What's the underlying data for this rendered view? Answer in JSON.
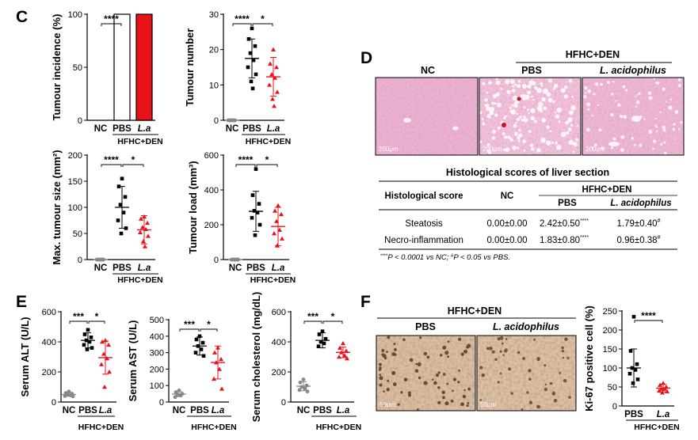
{
  "panels": {
    "C": "C",
    "D": "D",
    "E": "E",
    "F": "F"
  },
  "colors": {
    "nc": "#888888",
    "pbs": "#000000",
    "la": "#e8121a",
    "he_tissue": "#e6a6c8",
    "ihc_tissue": "#d9b999"
  },
  "group_label": "HFHC+DEN",
  "chart_data": [
    {
      "id": "tumour-incidence",
      "type": "bar",
      "ylabel": "Tumour incidence (%)",
      "ylim": [
        0,
        100
      ],
      "yticks": [
        0,
        50,
        100
      ],
      "categories": [
        "NC",
        "PBS",
        "L.a"
      ],
      "values": [
        0,
        100,
        100
      ],
      "sig": [
        {
          "from": 0,
          "to": 1,
          "label": "****"
        }
      ]
    },
    {
      "id": "tumour-number",
      "type": "scatter",
      "ylabel": "Tumour number",
      "ylim": [
        0,
        30
      ],
      "yticks": [
        0,
        10,
        20,
        30
      ],
      "categories": [
        "NC",
        "PBS",
        "L.a"
      ],
      "mean": [
        0,
        17.5,
        12.3
      ],
      "sd": [
        0,
        5.5,
        5.5
      ],
      "points": [
        [
          0,
          0,
          0,
          0,
          0,
          0,
          0,
          0
        ],
        [
          26,
          23,
          21,
          19,
          17,
          15,
          13,
          11,
          9
        ],
        [
          20,
          16,
          15,
          13,
          12,
          10,
          8,
          6,
          4
        ]
      ],
      "sig": [
        {
          "from": 0,
          "to": 1,
          "label": "****"
        },
        {
          "from": 1,
          "to": 2,
          "label": "*"
        }
      ]
    },
    {
      "id": "max-tumour-size",
      "type": "scatter",
      "ylabel": "Max. tumour size (mm²)",
      "ylim": [
        0,
        200
      ],
      "yticks": [
        0,
        50,
        100,
        150,
        200
      ],
      "categories": [
        "NC",
        "PBS",
        "L.a"
      ],
      "mean": [
        0,
        100,
        57
      ],
      "sd": [
        0,
        40,
        27
      ],
      "points": [
        [
          0,
          0,
          0,
          0,
          0,
          0,
          0,
          0
        ],
        [
          155,
          140,
          120,
          105,
          90,
          75,
          60,
          50
        ],
        [
          82,
          78,
          70,
          62,
          58,
          52,
          45,
          35,
          25
        ]
      ],
      "sig": [
        {
          "from": 0,
          "to": 1,
          "label": "****"
        },
        {
          "from": 1,
          "to": 2,
          "label": "*"
        }
      ]
    },
    {
      "id": "tumour-load",
      "type": "scatter",
      "ylabel": "Tumour load (mm³)",
      "ylim": [
        0,
        600
      ],
      "yticks": [
        0,
        200,
        400,
        600
      ],
      "categories": [
        "NC",
        "PBS",
        "L.a"
      ],
      "mean": [
        0,
        277,
        190
      ],
      "sd": [
        0,
        115,
        110
      ],
      "points": [
        [
          0,
          0,
          0,
          0,
          0,
          0,
          0,
          0
        ],
        [
          520,
          370,
          320,
          280,
          270,
          240,
          200,
          140
        ],
        [
          310,
          280,
          260,
          220,
          170,
          150,
          120,
          80
        ]
      ],
      "sig": [
        {
          "from": 0,
          "to": 1,
          "label": "****"
        },
        {
          "from": 1,
          "to": 2,
          "label": "*"
        }
      ]
    },
    {
      "id": "serum-alt",
      "type": "scatter",
      "ylabel": "Serum ALT (U/L)",
      "ylim": [
        0,
        600
      ],
      "yticks": [
        0,
        200,
        400,
        600
      ],
      "categories": [
        "NC",
        "PBS",
        "L.a"
      ],
      "mean": [
        50,
        410,
        295
      ],
      "sd": [
        12,
        50,
        110
      ],
      "points": [
        [
          70,
          60,
          55,
          50,
          45,
          40,
          38
        ],
        [
          480,
          450,
          430,
          410,
          400,
          380,
          360,
          350
        ],
        [
          410,
          400,
          380,
          320,
          290,
          250,
          200,
          100
        ]
      ],
      "sig": [
        {
          "from": 0,
          "to": 1,
          "label": "***"
        },
        {
          "from": 1,
          "to": 2,
          "label": "*"
        }
      ]
    },
    {
      "id": "serum-ast",
      "type": "scatter",
      "ylabel": "Serum AST (U/L)",
      "ylim": [
        0,
        500
      ],
      "yticks": [
        0,
        100,
        200,
        300,
        400,
        500
      ],
      "categories": [
        "NC",
        "PBS",
        "L.a"
      ],
      "mean": [
        48,
        340,
        240
      ],
      "sd": [
        15,
        55,
        100
      ],
      "points": [
        [
          70,
          60,
          50,
          45,
          40,
          30
        ],
        [
          400,
          380,
          360,
          340,
          320,
          300,
          280
        ],
        [
          330,
          300,
          260,
          240,
          200,
          140,
          80
        ]
      ],
      "sig": [
        {
          "from": 0,
          "to": 1,
          "label": "***"
        },
        {
          "from": 1,
          "to": 2,
          "label": "*"
        }
      ]
    },
    {
      "id": "serum-cholesterol",
      "type": "scatter",
      "ylabel": "Serum cholesterol (mg/dL)",
      "ylim": [
        0,
        600
      ],
      "yticks": [
        0,
        200,
        400,
        600
      ],
      "categories": [
        "NC",
        "PBS",
        "L.a"
      ],
      "mean": [
        105,
        410,
        330
      ],
      "sd": [
        30,
        50,
        35
      ],
      "points": [
        [
          150,
          130,
          110,
          100,
          90,
          80,
          70
        ],
        [
          470,
          450,
          420,
          400,
          390,
          370
        ],
        [
          390,
          360,
          340,
          330,
          310,
          300,
          290
        ]
      ],
      "sig": [
        {
          "from": 0,
          "to": 1,
          "label": "***"
        },
        {
          "from": 1,
          "to": 2,
          "label": "*"
        }
      ]
    },
    {
      "id": "ki67",
      "type": "scatter",
      "ylabel": "Ki-67 positive cell (%)",
      "ylim": [
        0,
        250
      ],
      "yticks": [
        0,
        50,
        100,
        150,
        200,
        250
      ],
      "categories": [
        "PBS",
        "L.a"
      ],
      "mean": [
        100,
        47
      ],
      "sd": [
        50,
        10
      ],
      "points": [
        [
          235,
          145,
          110,
          100,
          95,
          85,
          70,
          60
        ],
        [
          60,
          55,
          50,
          45,
          45,
          40,
          38,
          35
        ]
      ],
      "sig": [
        {
          "from": 0,
          "to": 1,
          "label": "****"
        }
      ]
    }
  ],
  "histology": {
    "title": "Histological scores of liver section",
    "images": [
      {
        "label": "NC",
        "scale": "200μm"
      },
      {
        "label": "PBS",
        "scale": "200μm"
      },
      {
        "label": "L. acidophilus",
        "scale": "200μm"
      }
    ],
    "header": {
      "col0": "Histological score",
      "col1": "NC",
      "group": "HFHC+DEN",
      "col2": "PBS",
      "col3": "L. acidophilus"
    },
    "rows": [
      {
        "name": "Steatosis",
        "nc": "0.00±0.00",
        "pbs": "2.42±0.50",
        "pbs_sup": "****",
        "la": "1.79±0.40",
        "la_sup": "#"
      },
      {
        "name": "Necro-inflammation",
        "nc": "0.00±0.00",
        "pbs": "1.83±0.80",
        "pbs_sup": "****",
        "la": "0.96±0.38",
        "la_sup": "#"
      }
    ],
    "note_a": "****",
    "note_b": "P < 0.0001 vs NC; ",
    "note_c": "#",
    "note_d": "P < 0.05 vs PBS."
  },
  "ki67_images": {
    "group": "HFHC+DEN",
    "labels": [
      "PBS",
      "L. acidophilus"
    ],
    "scale": "50μm"
  }
}
